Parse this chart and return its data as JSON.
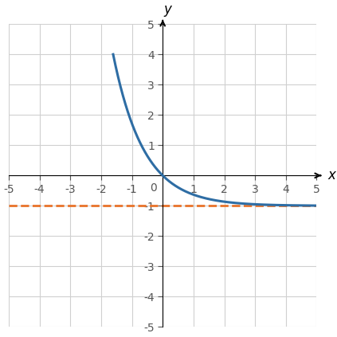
{
  "func": "exp_minus_1",
  "xlim": [
    -5,
    5
  ],
  "ylim": [
    -5,
    5
  ],
  "xticks": [
    -5,
    -4,
    -3,
    -2,
    -1,
    0,
    1,
    2,
    3,
    4,
    5
  ],
  "yticks": [
    -5,
    -4,
    -3,
    -2,
    -1,
    0,
    1,
    2,
    3,
    4,
    5
  ],
  "curve_color": "#2e6da4",
  "curve_linewidth": 2.2,
  "asymptote_y": -1,
  "asymptote_color": "#e8732a",
  "asymptote_linewidth": 2.0,
  "asymptote_linestyle": "--",
  "grid_color": "#d0d0d0",
  "background_color": "#ffffff",
  "xlabel": "x",
  "ylabel": "y",
  "axis_label_fontsize": 12,
  "tick_label_fontsize": 10,
  "tick_color": "#555555",
  "clip_ymin": -5,
  "clip_ymax": 5.2
}
